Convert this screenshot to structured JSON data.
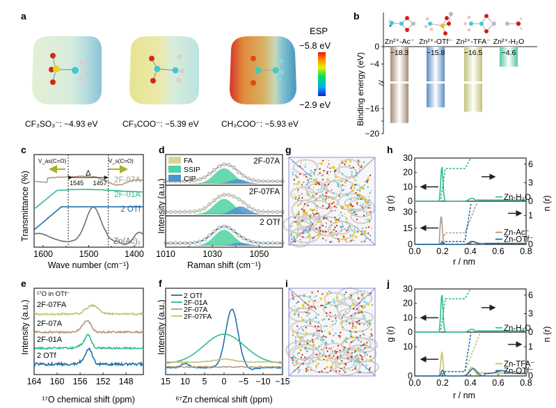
{
  "panel_labels": {
    "a": "a",
    "b": "b",
    "c": "c",
    "d": "d",
    "e": "e",
    "f": "f",
    "g": "g",
    "h": "h",
    "i": "i",
    "j": "j"
  },
  "colors": {
    "brown": "#ad9a86",
    "teal_green": "#2fba8a",
    "blue": "#1f6ea8",
    "gray": "#6d6d6d",
    "olive": "#c3c06a",
    "cip_blue": "#4f93c9",
    "ssip_green": "#4fd1a0",
    "fa_yellow": "#d8d59a",
    "arrow_olive": "#a8b020"
  },
  "chart_data": [
    {
      "panel": "a",
      "type": "other",
      "title": "ESP",
      "molecules": [
        {
          "name": "CF3SO3-",
          "label": "CF₃SO₃⁻: −4.93 eV",
          "esp": -4.93
        },
        {
          "name": "CF3COO-",
          "label": "CF₃COO⁻: −5.39 eV",
          "esp": -5.39
        },
        {
          "name": "CH3COO-",
          "label": "CH₃COO⁻: −5.93 eV",
          "esp": -5.93
        }
      ],
      "colorbar": {
        "title": "ESP",
        "max_label": "−5.8 eV",
        "min_label": "−2.9 eV",
        "range": [
          -5.8,
          -2.9
        ]
      }
    },
    {
      "panel": "b",
      "type": "bar",
      "ylabel": "Binding energy (eV)",
      "categories": [
        "Zn²⁺-Ac⁻",
        "Zn²⁺-OTf⁻",
        "Zn²⁺-TFA⁻",
        "Zn²⁺-H₂O"
      ],
      "values": [
        -18.3,
        -15.8,
        -16.5,
        -4.6
      ],
      "value_labels": [
        "−18.3",
        "−15.8",
        "−16.5",
        "−4.6"
      ],
      "yticks": [
        "0",
        "−4",
        "−16",
        "−20"
      ],
      "ylim": [
        -20,
        0
      ],
      "axis_break": [
        -8,
        -12
      ],
      "bar_colors": [
        "#a48d78",
        "#5d8fc7",
        "#c5c27a",
        "#57c79b"
      ]
    },
    {
      "panel": "c",
      "type": "line",
      "xlabel": "Wave number (cm⁻¹)",
      "ylabel": "Transmittance (%)",
      "xticks": [
        "1600",
        "1500",
        "1400"
      ],
      "xlim": [
        1620,
        1380
      ],
      "series": [
        {
          "name": "2F-07A",
          "color": "#ad9a86"
        },
        {
          "name": "2F-01A",
          "color": "#2fba8a"
        },
        {
          "name": "2 OTf",
          "color": "#1f6ea8"
        },
        {
          "name": "Zn(Ac)₂",
          "color": "#6d6d6d"
        }
      ],
      "annotations": {
        "vas": "V_as(C=O)",
        "vs": "V_s(C=O)",
        "delta": "Δ",
        "peak1": "1545",
        "peak2": "1457"
      },
      "vlines": [
        1545,
        1457
      ]
    },
    {
      "panel": "d",
      "type": "area",
      "xlabel": "Raman shift (cm⁻¹)",
      "ylabel": "Intensity (a.u.)",
      "xticks": [
        "1010",
        "1030",
        "1050"
      ],
      "xlim": [
        1010,
        1060
      ],
      "legend": [
        "FA",
        "SSIP",
        "CIP"
      ],
      "subplots": [
        {
          "name": "2F-07A",
          "line_color": "#ad9a86",
          "ssip_center": 1035,
          "cip_center": 1041,
          "fa_center": 1028
        },
        {
          "name": "2F-07FA",
          "line_color": "#c3c06a",
          "ssip_center": 1035,
          "cip_center": 1042,
          "fa_center": 1029
        },
        {
          "name": "2 OTf",
          "line_color": "#1f6ea8",
          "ssip_center": 1035,
          "cip_center": 1042,
          "fa_center": 1029
        }
      ]
    },
    {
      "panel": "e",
      "type": "line",
      "xlabel": "¹⁷O chemical shift (ppm)",
      "ylabel": "Intensity (a.u.)",
      "xticks": [
        "164",
        "160",
        "156",
        "152",
        "148"
      ],
      "xlim": [
        164,
        145
      ],
      "title_annotation": "¹⁷O in OTf⁻",
      "series": [
        {
          "name": "2F-07FA",
          "color": "#c3c06a",
          "peak": 153.8
        },
        {
          "name": "2F-07A",
          "color": "#ad9a86",
          "peak": 154.8
        },
        {
          "name": "2F-01A",
          "color": "#2fba8a",
          "peak": 154.6
        },
        {
          "name": "2 OTf",
          "color": "#1f6ea8",
          "peak": 154.4
        }
      ]
    },
    {
      "panel": "f",
      "type": "line",
      "xlabel": "⁶⁷Zn chemical shift (ppm)",
      "ylabel": "Intensity (a.u.)",
      "xticks": [
        "15",
        "10",
        "5",
        "0",
        "−5",
        "−10",
        "−15"
      ],
      "xlim": [
        15,
        -15
      ],
      "series": [
        {
          "name": "2 OTf",
          "color": "#1f6ea8",
          "peak": -2
        },
        {
          "name": "2F-01A",
          "color": "#2fba8a",
          "peak": 0
        },
        {
          "name": "2F-07A",
          "color": "#ad9a86",
          "peak": null
        },
        {
          "name": "2F-07FA",
          "color": "#c3c06a",
          "peak": 0
        }
      ]
    },
    {
      "panel": "g",
      "type": "other",
      "description": "MD simulation snapshot"
    },
    {
      "panel": "h",
      "type": "line",
      "xlabel": "r / nm",
      "ylabel_left": "g (r)",
      "ylabel_right": "n (r)",
      "xticks": [
        "0.0",
        "0.2",
        "0.4",
        "0.6",
        "0.8"
      ],
      "xlim": [
        0,
        0.8
      ],
      "top": {
        "ylim_left": [
          0,
          30
        ],
        "yticks_left": [
          "0",
          "10",
          "20",
          "30"
        ],
        "ylim_right": [
          0,
          7
        ],
        "yticks_right": [
          "0",
          "3",
          "6"
        ],
        "series": [
          {
            "name": "Zn-H₂O",
            "color": "#2fba8a",
            "peak_r": 0.195,
            "peak_g": 24,
            "n_plateau": 5.3
          }
        ]
      },
      "bottom": {
        "ylim_left": [
          0,
          40
        ],
        "yticks_left": [
          "0",
          "15",
          "30"
        ],
        "ylim_right": [
          0,
          1.5
        ],
        "yticks_right": [
          "0",
          "1"
        ],
        "series": [
          {
            "name": "Zn-Ac⁻",
            "color": "#ad9a86",
            "peak_r": 0.19,
            "peak_g": 26,
            "n_plateau": 0.4
          },
          {
            "name": "Zn-OTf⁻",
            "color": "#1f6ea8",
            "peak_r": 0.2,
            "peak_g": 2,
            "n_plateau": 0.1
          }
        ]
      }
    },
    {
      "panel": "i",
      "type": "other",
      "description": "MD simulation snapshot"
    },
    {
      "panel": "j",
      "type": "line",
      "xlabel": "r / nm",
      "ylabel_left": "g (r)",
      "ylabel_right": "n (r)",
      "xticks": [
        "0.0",
        "0.2",
        "0.4",
        "0.6",
        "0.8"
      ],
      "xlim": [
        0,
        0.8
      ],
      "top": {
        "ylim_left": [
          0,
          30
        ],
        "yticks_left": [
          "0",
          "10",
          "20",
          "30"
        ],
        "ylim_right": [
          0,
          7
        ],
        "yticks_right": [
          "0",
          "3",
          "6"
        ],
        "series": [
          {
            "name": "Zn-H₂O",
            "color": "#2fba8a",
            "peak_r": 0.195,
            "peak_g": 26,
            "n_plateau": 5.4
          }
        ]
      },
      "bottom": {
        "ylim_left": [
          0,
          15
        ],
        "yticks_left": [
          "0",
          "10"
        ],
        "ylim_right": [
          0,
          1.5
        ],
        "yticks_right": [
          "0",
          "1"
        ],
        "series": [
          {
            "name": "Zn-TFA⁻",
            "color": "#c3c06a",
            "peak_r": 0.195,
            "peak_g": 8,
            "n_plateau": 0.15
          },
          {
            "name": "Zn-OTf⁻",
            "color": "#1f6ea8",
            "peak_r": 0.2,
            "peak_g": 2,
            "n_plateau": 0.15
          }
        ]
      }
    }
  ]
}
